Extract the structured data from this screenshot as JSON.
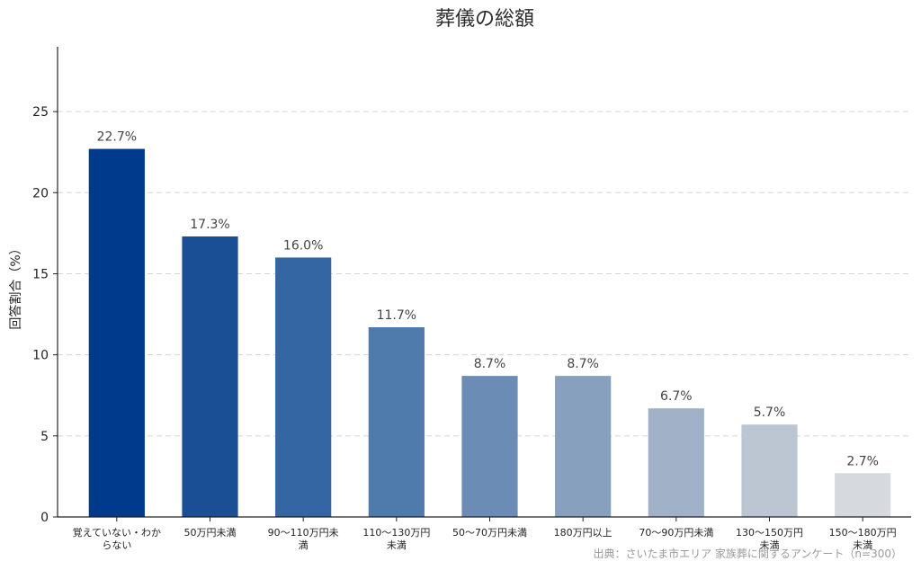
{
  "chart_data": {
    "type": "bar",
    "title": "葬儀の総額",
    "xlabel": "",
    "ylabel": "回答割合（%）",
    "ylim": [
      0,
      29
    ],
    "yticks": [
      0,
      5,
      10,
      15,
      20,
      25
    ],
    "grid": true,
    "categories": [
      [
        "覚えていない・わか",
        "らない"
      ],
      [
        "50万円未満"
      ],
      [
        "90〜110万円未",
        "満"
      ],
      [
        "110〜130万円",
        "未満"
      ],
      [
        "50〜70万円未満"
      ],
      [
        "180万円以上"
      ],
      [
        "70〜90万円未満"
      ],
      [
        "130〜150万円",
        "未満"
      ],
      [
        "150〜180万円",
        "未満"
      ]
    ],
    "values": [
      22.7,
      17.3,
      16.0,
      11.7,
      8.7,
      8.7,
      6.7,
      5.7,
      2.7
    ],
    "value_labels": [
      "22.7%",
      "17.3%",
      "16.0%",
      "11.7%",
      "8.7%",
      "8.7%",
      "6.7%",
      "5.7%",
      "2.7%"
    ],
    "colors": [
      "#003a8c",
      "#1a4f96",
      "#3466a3",
      "#4e7aac",
      "#6b8db5",
      "#86a0be",
      "#a1b2c8",
      "#bcc6d3",
      "#d6dadf"
    ]
  },
  "source": "出典：さいたま市エリア 家族葬に関するアンケート（n=300）"
}
